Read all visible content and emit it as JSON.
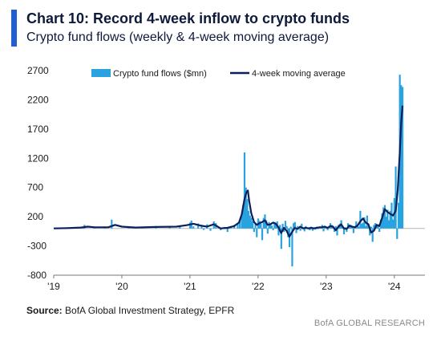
{
  "header": {
    "title": "Chart 10: Record 4-week inflow to crypto funds",
    "subtitle": "Crypto fund flows (weekly & 4-week moving average)"
  },
  "footer": {
    "source_label": "Source:",
    "source_text": "BofA Global Investment Strategy, EPFR",
    "brand": "BofA GLOBAL RESEARCH"
  },
  "colors": {
    "bars": "#29a3e0",
    "line": "#0b1f5c",
    "accent": "#1f5fd1",
    "text": "#0e1a3a"
  },
  "chart_data": {
    "type": "bar+line",
    "title": "Chart 10: Record 4-week inflow to crypto funds",
    "subtitle": "Crypto fund flows (weekly & 4-week moving average)",
    "xlabel": "",
    "ylabel": "",
    "ylim": [
      -800,
      2700
    ],
    "yticks": [
      2700,
      2200,
      1700,
      1200,
      700,
      200,
      -300,
      -800
    ],
    "xlim": [
      2019.0,
      2024.45
    ],
    "xticks": [
      {
        "value": 2019,
        "label": "'19"
      },
      {
        "value": 2020,
        "label": "'20"
      },
      {
        "value": 2021,
        "label": "'21"
      },
      {
        "value": 2022,
        "label": "'22"
      },
      {
        "value": 2023,
        "label": "'23"
      },
      {
        "value": 2024,
        "label": "'24"
      }
    ],
    "grid": false,
    "legend": "top-center",
    "series": [
      {
        "name": "Crypto fund flows ($mn)",
        "kind": "bar",
        "points": [
          [
            2019.1,
            10
          ],
          [
            2019.3,
            15
          ],
          [
            2019.45,
            60
          ],
          [
            2019.6,
            20
          ],
          [
            2019.75,
            25
          ],
          [
            2019.85,
            150
          ],
          [
            2020.1,
            20
          ],
          [
            2020.3,
            25
          ],
          [
            2020.5,
            40
          ],
          [
            2020.7,
            30
          ],
          [
            2020.85,
            45
          ],
          [
            2021.0,
            100
          ],
          [
            2021.02,
            135
          ],
          [
            2021.05,
            35
          ],
          [
            2021.12,
            85
          ],
          [
            2021.17,
            60
          ],
          [
            2021.2,
            -25
          ],
          [
            2021.25,
            70
          ],
          [
            2021.3,
            -40
          ],
          [
            2021.35,
            120
          ],
          [
            2021.38,
            90
          ],
          [
            2021.42,
            30
          ],
          [
            2021.45,
            -30
          ],
          [
            2021.5,
            25
          ],
          [
            2021.55,
            -60
          ],
          [
            2021.6,
            40
          ],
          [
            2021.65,
            60
          ],
          [
            2021.7,
            90
          ],
          [
            2021.73,
            140
          ],
          [
            2021.76,
            210
          ],
          [
            2021.78,
            400
          ],
          [
            2021.8,
            1300
          ],
          [
            2021.82,
            700
          ],
          [
            2021.84,
            500
          ],
          [
            2021.86,
            300
          ],
          [
            2021.88,
            220
          ],
          [
            2021.9,
            180
          ],
          [
            2021.92,
            120
          ],
          [
            2021.94,
            -60
          ],
          [
            2021.96,
            80
          ],
          [
            2021.98,
            -150
          ],
          [
            2022.0,
            170
          ],
          [
            2022.02,
            130
          ],
          [
            2022.04,
            80
          ],
          [
            2022.06,
            -200
          ],
          [
            2022.08,
            180
          ],
          [
            2022.1,
            240
          ],
          [
            2022.12,
            140
          ],
          [
            2022.14,
            -90
          ],
          [
            2022.16,
            110
          ],
          [
            2022.18,
            60
          ],
          [
            2022.2,
            50
          ],
          [
            2022.22,
            -30
          ],
          [
            2022.24,
            110
          ],
          [
            2022.26,
            80
          ],
          [
            2022.28,
            120
          ],
          [
            2022.3,
            -120
          ],
          [
            2022.32,
            60
          ],
          [
            2022.34,
            -350
          ],
          [
            2022.36,
            80
          ],
          [
            2022.38,
            -60
          ],
          [
            2022.4,
            130
          ],
          [
            2022.42,
            40
          ],
          [
            2022.44,
            -150
          ],
          [
            2022.46,
            -320
          ],
          [
            2022.48,
            30
          ],
          [
            2022.5,
            -650
          ],
          [
            2022.52,
            90
          ],
          [
            2022.54,
            110
          ],
          [
            2022.56,
            -80
          ],
          [
            2022.58,
            40
          ],
          [
            2022.6,
            30
          ],
          [
            2022.62,
            -40
          ],
          [
            2022.64,
            80
          ],
          [
            2022.66,
            20
          ],
          [
            2022.68,
            -50
          ],
          [
            2022.7,
            40
          ],
          [
            2022.72,
            10
          ],
          [
            2022.74,
            20
          ],
          [
            2022.76,
            -30
          ],
          [
            2022.78,
            30
          ],
          [
            2022.8,
            -40
          ],
          [
            2022.82,
            20
          ],
          [
            2022.84,
            -20
          ],
          [
            2022.86,
            30
          ],
          [
            2022.88,
            -10
          ],
          [
            2022.9,
            20
          ],
          [
            2022.92,
            30
          ],
          [
            2022.94,
            60
          ],
          [
            2022.96,
            -50
          ],
          [
            2022.98,
            40
          ],
          [
            2023.0,
            30
          ],
          [
            2023.02,
            -30
          ],
          [
            2023.04,
            30
          ],
          [
            2023.06,
            90
          ],
          [
            2023.08,
            60
          ],
          [
            2023.1,
            20
          ],
          [
            2023.12,
            -60
          ],
          [
            2023.14,
            40
          ],
          [
            2023.16,
            -120
          ],
          [
            2023.18,
            60
          ],
          [
            2023.2,
            80
          ],
          [
            2023.22,
            140
          ],
          [
            2023.24,
            40
          ],
          [
            2023.26,
            -100
          ],
          [
            2023.28,
            20
          ],
          [
            2023.3,
            -60
          ],
          [
            2023.32,
            90
          ],
          [
            2023.34,
            30
          ],
          [
            2023.36,
            60
          ],
          [
            2023.38,
            20
          ],
          [
            2023.4,
            -80
          ],
          [
            2023.42,
            40
          ],
          [
            2023.44,
            120
          ],
          [
            2023.46,
            60
          ],
          [
            2023.48,
            30
          ],
          [
            2023.5,
            300
          ],
          [
            2023.52,
            80
          ],
          [
            2023.54,
            100
          ],
          [
            2023.56,
            190
          ],
          [
            2023.58,
            40
          ],
          [
            2023.6,
            220
          ],
          [
            2023.62,
            60
          ],
          [
            2023.64,
            -120
          ],
          [
            2023.66,
            30
          ],
          [
            2023.68,
            -230
          ],
          [
            2023.7,
            60
          ],
          [
            2023.72,
            90
          ],
          [
            2023.74,
            40
          ],
          [
            2023.76,
            70
          ],
          [
            2023.78,
            -60
          ],
          [
            2023.8,
            150
          ],
          [
            2023.82,
            260
          ],
          [
            2023.84,
            360
          ],
          [
            2023.86,
            400
          ],
          [
            2023.88,
            200
          ],
          [
            2023.9,
            320
          ],
          [
            2023.92,
            140
          ],
          [
            2023.94,
            300
          ],
          [
            2023.96,
            440
          ],
          [
            2023.98,
            150
          ],
          [
            2024.0,
            520
          ],
          [
            2024.02,
            1060
          ],
          [
            2024.04,
            -180
          ],
          [
            2024.06,
            440
          ],
          [
            2024.08,
            2630
          ],
          [
            2024.1,
            2450
          ],
          [
            2024.12,
            2420
          ]
        ]
      },
      {
        "name": "4-week moving average",
        "kind": "line",
        "points": [
          [
            2019.0,
            0
          ],
          [
            2019.2,
            5
          ],
          [
            2019.4,
            15
          ],
          [
            2019.5,
            30
          ],
          [
            2019.6,
            20
          ],
          [
            2019.8,
            20
          ],
          [
            2019.9,
            60
          ],
          [
            2020.0,
            30
          ],
          [
            2020.2,
            15
          ],
          [
            2020.5,
            25
          ],
          [
            2020.8,
            30
          ],
          [
            2020.95,
            55
          ],
          [
            2021.05,
            80
          ],
          [
            2021.15,
            50
          ],
          [
            2021.25,
            30
          ],
          [
            2021.35,
            70
          ],
          [
            2021.45,
            0
          ],
          [
            2021.55,
            10
          ],
          [
            2021.65,
            40
          ],
          [
            2021.72,
            100
          ],
          [
            2021.76,
            240
          ],
          [
            2021.8,
            500
          ],
          [
            2021.83,
            620
          ],
          [
            2021.85,
            650
          ],
          [
            2021.87,
            470
          ],
          [
            2021.9,
            260
          ],
          [
            2021.94,
            110
          ],
          [
            2021.98,
            60
          ],
          [
            2022.02,
            90
          ],
          [
            2022.06,
            110
          ],
          [
            2022.1,
            140
          ],
          [
            2022.14,
            60
          ],
          [
            2022.18,
            70
          ],
          [
            2022.22,
            100
          ],
          [
            2022.26,
            80
          ],
          [
            2022.3,
            20
          ],
          [
            2022.34,
            -80
          ],
          [
            2022.38,
            10
          ],
          [
            2022.42,
            -40
          ],
          [
            2022.46,
            -140
          ],
          [
            2022.5,
            -60
          ],
          [
            2022.54,
            10
          ],
          [
            2022.58,
            -10
          ],
          [
            2022.62,
            30
          ],
          [
            2022.66,
            0
          ],
          [
            2022.7,
            10
          ],
          [
            2022.74,
            0
          ],
          [
            2022.78,
            10
          ],
          [
            2022.82,
            0
          ],
          [
            2022.86,
            10
          ],
          [
            2022.9,
            20
          ],
          [
            2022.94,
            20
          ],
          [
            2022.98,
            30
          ],
          [
            2023.02,
            10
          ],
          [
            2023.06,
            40
          ],
          [
            2023.1,
            30
          ],
          [
            2023.14,
            -30
          ],
          [
            2023.18,
            30
          ],
          [
            2023.22,
            70
          ],
          [
            2023.26,
            0
          ],
          [
            2023.3,
            -10
          ],
          [
            2023.34,
            50
          ],
          [
            2023.38,
            30
          ],
          [
            2023.42,
            20
          ],
          [
            2023.46,
            50
          ],
          [
            2023.5,
            120
          ],
          [
            2023.54,
            170
          ],
          [
            2023.58,
            100
          ],
          [
            2023.62,
            70
          ],
          [
            2023.66,
            -70
          ],
          [
            2023.7,
            -40
          ],
          [
            2023.74,
            60
          ],
          [
            2023.78,
            40
          ],
          [
            2023.82,
            180
          ],
          [
            2023.86,
            330
          ],
          [
            2023.9,
            280
          ],
          [
            2023.94,
            250
          ],
          [
            2023.98,
            220
          ],
          [
            2024.02,
            300
          ],
          [
            2024.05,
            650
          ],
          [
            2024.08,
            1300
          ],
          [
            2024.1,
            1800
          ],
          [
            2024.12,
            2100
          ]
        ]
      }
    ]
  }
}
